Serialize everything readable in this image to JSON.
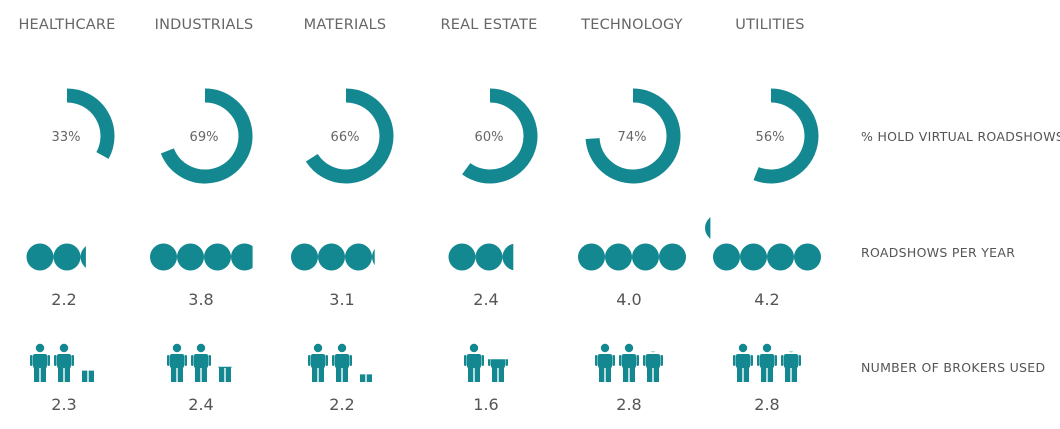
{
  "colors": {
    "accent": "#138891",
    "text": "#555555",
    "background": "#ffffff"
  },
  "chart_data": {
    "type": "infographic",
    "categories": [
      "HEALTHCARE",
      "INDUSTRIALS",
      "MATERIALS",
      "REAL ESTATE",
      "TECHNOLOGY",
      "UTILITIES"
    ],
    "rows": [
      {
        "label": "% HOLD VIRTUAL ROADSHOWS",
        "type": "donut",
        "values": [
          33,
          69,
          66,
          60,
          74,
          56
        ],
        "value_labels": [
          "33%",
          "69%",
          "66%",
          "60%",
          "74%",
          "56%"
        ],
        "max": 100
      },
      {
        "label": "ROADSHOWS PER YEAR",
        "type": "circle-pictogram",
        "values": [
          2.2,
          3.8,
          3.1,
          2.4,
          4.0,
          4.2
        ],
        "value_labels": [
          "2.2",
          "3.8",
          "3.1",
          "2.4",
          "4.0",
          "4.2"
        ]
      },
      {
        "label": "NUMBER OF BROKERS USED",
        "type": "person-pictogram",
        "values": [
          2.3,
          2.4,
          2.2,
          1.6,
          2.8,
          2.8
        ],
        "value_labels": [
          "2.3",
          "2.4",
          "2.2",
          "1.6",
          "2.8",
          "2.8"
        ]
      }
    ]
  }
}
